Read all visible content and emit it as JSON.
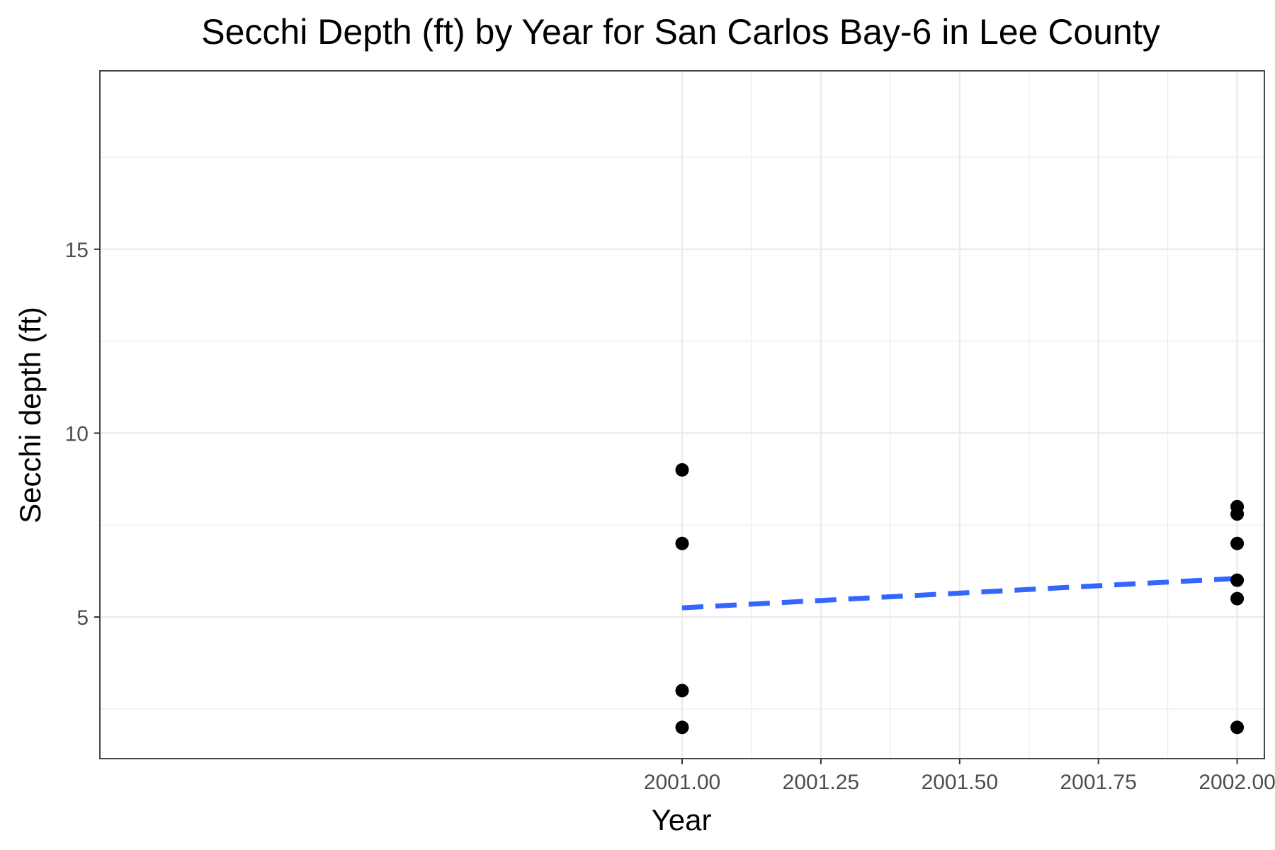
{
  "chart_data": {
    "type": "scatter",
    "title": "Secchi Depth (ft) by Year for San Carlos Bay-6 in Lee County",
    "xlabel": "Year",
    "ylabel": "Secchi depth (ft)",
    "xlim": [
      1999.951,
      2002.049
    ],
    "ylim": [
      1.15,
      19.85
    ],
    "x_ticks": [
      2001.0,
      2001.25,
      2001.5,
      2001.75,
      2002.0
    ],
    "x_tick_labels": [
      "2001.00",
      "2001.25",
      "2001.50",
      "2001.75",
      "2002.00"
    ],
    "y_ticks": [
      5,
      10,
      15
    ],
    "y_tick_labels": [
      "5",
      "10",
      "15"
    ],
    "grid": true,
    "points": [
      {
        "x": 2001.0,
        "y": 9
      },
      {
        "x": 2001.0,
        "y": 7
      },
      {
        "x": 2001.0,
        "y": 3
      },
      {
        "x": 2001.0,
        "y": 2
      },
      {
        "x": 2002.0,
        "y": 8
      },
      {
        "x": 2002.0,
        "y": 7.8
      },
      {
        "x": 2002.0,
        "y": 7
      },
      {
        "x": 2002.0,
        "y": 6
      },
      {
        "x": 2002.0,
        "y": 5.5
      },
      {
        "x": 2002.0,
        "y": 2
      }
    ],
    "trend_line": {
      "style": "dashed",
      "color": "#3366ff",
      "x": [
        2001.0,
        2002.0
      ],
      "y": [
        5.25,
        6.05
      ]
    },
    "point_color": "#000000",
    "panel_border_color": "#333333",
    "grid_color": "#ebebeb"
  }
}
